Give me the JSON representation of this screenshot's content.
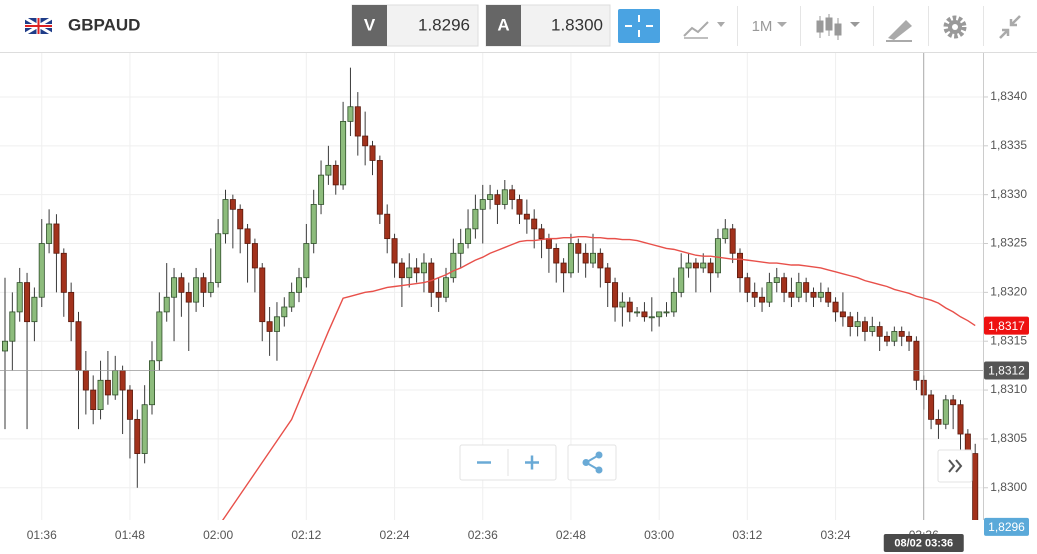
{
  "toolbar": {
    "symbol": "GBPAUD",
    "bid_label": "V",
    "bid": "1.8296",
    "ask_label": "A",
    "ask": "1.8300",
    "timeframe": "1M"
  },
  "chart_data": {
    "type": "candlestick",
    "categories": [
      null,
      null,
      null,
      null,
      null,
      "01:36",
      null,
      null,
      null,
      null,
      null,
      null,
      null,
      null,
      null,
      null,
      null,
      "01:48",
      null,
      null,
      null,
      null,
      null,
      null,
      null,
      null,
      null,
      null,
      null,
      "02:00",
      null,
      null,
      null,
      null,
      null,
      null,
      null,
      null,
      null,
      null,
      null,
      "02:12",
      null,
      null,
      null,
      null,
      null,
      null,
      null,
      null,
      null,
      null,
      null,
      "02:24",
      null,
      null,
      null,
      null,
      null,
      null,
      null,
      null,
      null,
      null,
      null,
      "02:36",
      null,
      null,
      null,
      null,
      null,
      null,
      null,
      null,
      null,
      null,
      null,
      "02:48",
      null,
      null,
      null,
      null,
      null,
      null,
      null,
      null,
      null,
      null,
      null,
      "03:00",
      null,
      null,
      null,
      null,
      null,
      null,
      null,
      null,
      null,
      null,
      null,
      "03:12",
      null,
      null,
      null,
      null,
      null,
      null,
      null,
      null,
      null,
      null,
      null,
      "03:24",
      null,
      null,
      null,
      null,
      null,
      null,
      null,
      null,
      null,
      null,
      null,
      "03:36",
      null,
      null,
      null,
      null,
      null,
      null,
      null
    ],
    "ohlc": [
      [
        1.8314,
        1.83215,
        1.8306,
        1.8315
      ],
      [
        1.8315,
        1.832,
        1.8312,
        1.8318
      ],
      [
        1.8318,
        1.83225,
        1.8317,
        1.8321
      ],
      [
        1.8321,
        1.8322,
        1.8306,
        1.8317
      ],
      [
        1.8317,
        1.83205,
        1.8315,
        1.83195
      ],
      [
        1.83195,
        1.83275,
        1.83185,
        1.8325
      ],
      [
        1.8325,
        1.83285,
        1.8324,
        1.8327
      ],
      [
        1.8327,
        1.8328,
        1.832,
        1.8324
      ],
      [
        1.8324,
        1.83245,
        1.83175,
        1.832
      ],
      [
        1.832,
        1.8321,
        1.8315,
        1.8317
      ],
      [
        1.8317,
        1.8318,
        1.8306,
        1.8312
      ],
      [
        1.8312,
        1.8314,
        1.83075,
        1.831
      ],
      [
        1.831,
        1.83115,
        1.83065,
        1.8308
      ],
      [
        1.8308,
        1.8313,
        1.8307,
        1.8311
      ],
      [
        1.8311,
        1.8314,
        1.83085,
        1.83095
      ],
      [
        1.83095,
        1.83135,
        1.8309,
        1.8312
      ],
      [
        1.8312,
        1.83125,
        1.83055,
        1.831
      ],
      [
        1.831,
        1.83105,
        1.8303,
        1.8307
      ],
      [
        1.8307,
        1.8308,
        1.83,
        1.83035
      ],
      [
        1.83035,
        1.83105,
        1.83025,
        1.83085
      ],
      [
        1.83085,
        1.8315,
        1.83075,
        1.8313
      ],
      [
        1.8313,
        1.832,
        1.8312,
        1.8318
      ],
      [
        1.8318,
        1.8323,
        1.8317,
        1.83195
      ],
      [
        1.83195,
        1.83225,
        1.8315,
        1.83215
      ],
      [
        1.83215,
        1.8322,
        1.83175,
        1.832
      ],
      [
        1.832,
        1.8321,
        1.8314,
        1.8319
      ],
      [
        1.8319,
        1.83225,
        1.8318,
        1.83215
      ],
      [
        1.83215,
        1.8322,
        1.83185,
        1.832
      ],
      [
        1.832,
        1.83245,
        1.83195,
        1.8321
      ],
      [
        1.8321,
        1.83275,
        1.83205,
        1.8326
      ],
      [
        1.8326,
        1.83305,
        1.8325,
        1.83295
      ],
      [
        1.83295,
        1.833,
        1.83245,
        1.83285
      ],
      [
        1.83285,
        1.8329,
        1.8324,
        1.83265
      ],
      [
        1.83265,
        1.8327,
        1.8321,
        1.8325
      ],
      [
        1.8325,
        1.83255,
        1.832,
        1.83225
      ],
      [
        1.83225,
        1.8323,
        1.8315,
        1.8317
      ],
      [
        1.8317,
        1.83185,
        1.83135,
        1.8316
      ],
      [
        1.8316,
        1.8319,
        1.8313,
        1.83175
      ],
      [
        1.83175,
        1.83195,
        1.83165,
        1.83185
      ],
      [
        1.83185,
        1.8321,
        1.8318,
        1.832
      ],
      [
        1.832,
        1.83225,
        1.8319,
        1.83215
      ],
      [
        1.83215,
        1.8327,
        1.83205,
        1.8325
      ],
      [
        1.8325,
        1.83305,
        1.8324,
        1.8329
      ],
      [
        1.8329,
        1.83335,
        1.8328,
        1.8332
      ],
      [
        1.8332,
        1.8335,
        1.8331,
        1.8333
      ],
      [
        1.8333,
        1.83335,
        1.833,
        1.8331
      ],
      [
        1.8331,
        1.83395,
        1.83305,
        1.83375
      ],
      [
        1.83375,
        1.8343,
        1.8336,
        1.8339
      ],
      [
        1.8339,
        1.83405,
        1.8334,
        1.8336
      ],
      [
        1.8336,
        1.83385,
        1.8333,
        1.8335
      ],
      [
        1.8335,
        1.83355,
        1.8332,
        1.83335
      ],
      [
        1.83335,
        1.8334,
        1.8327,
        1.8328
      ],
      [
        1.8328,
        1.8329,
        1.8324,
        1.83255
      ],
      [
        1.83255,
        1.8326,
        1.83215,
        1.8323
      ],
      [
        1.8323,
        1.83235,
        1.83185,
        1.83215
      ],
      [
        1.83215,
        1.8324,
        1.83205,
        1.83225
      ],
      [
        1.83225,
        1.83235,
        1.8321,
        1.8322
      ],
      [
        1.8322,
        1.8324,
        1.832,
        1.8323
      ],
      [
        1.8323,
        1.83235,
        1.83185,
        1.832
      ],
      [
        1.832,
        1.83215,
        1.8318,
        1.83195
      ],
      [
        1.83195,
        1.83225,
        1.8319,
        1.83215
      ],
      [
        1.83215,
        1.83255,
        1.8321,
        1.8324
      ],
      [
        1.8324,
        1.83265,
        1.83225,
        1.8325
      ],
      [
        1.8325,
        1.83285,
        1.83245,
        1.83265
      ],
      [
        1.83265,
        1.833,
        1.83255,
        1.83285
      ],
      [
        1.83285,
        1.8331,
        1.8325,
        1.83295
      ],
      [
        1.83295,
        1.8331,
        1.83285,
        1.833
      ],
      [
        1.833,
        1.83305,
        1.8327,
        1.8329
      ],
      [
        1.8329,
        1.83315,
        1.83285,
        1.83305
      ],
      [
        1.83305,
        1.8331,
        1.83285,
        1.83295
      ],
      [
        1.83295,
        1.833,
        1.8327,
        1.8328
      ],
      [
        1.8328,
        1.83295,
        1.8326,
        1.83275
      ],
      [
        1.83275,
        1.83285,
        1.83245,
        1.83265
      ],
      [
        1.83265,
        1.8327,
        1.83235,
        1.83255
      ],
      [
        1.83255,
        1.8326,
        1.8322,
        1.83245
      ],
      [
        1.83245,
        1.8325,
        1.8321,
        1.8323
      ],
      [
        1.8323,
        1.83235,
        1.832,
        1.8322
      ],
      [
        1.8322,
        1.8326,
        1.83215,
        1.8325
      ],
      [
        1.8325,
        1.83255,
        1.8322,
        1.8324
      ],
      [
        1.8324,
        1.8325,
        1.83215,
        1.8323
      ],
      [
        1.8323,
        1.8326,
        1.83225,
        1.8324
      ],
      [
        1.8324,
        1.83245,
        1.83205,
        1.83225
      ],
      [
        1.83225,
        1.8323,
        1.83185,
        1.8321
      ],
      [
        1.8321,
        1.83215,
        1.8317,
        1.83185
      ],
      [
        1.83185,
        1.832,
        1.83165,
        1.8319
      ],
      [
        1.8319,
        1.83195,
        1.8317,
        1.8318
      ],
      [
        1.8318,
        1.83185,
        1.83175,
        1.8318
      ],
      [
        1.8318,
        1.8319,
        1.8317,
        1.83175
      ],
      [
        1.83175,
        1.83195,
        1.8316,
        1.83175
      ],
      [
        1.83175,
        1.8318,
        1.83165,
        1.8318
      ],
      [
        1.8318,
        1.8319,
        1.83175,
        1.8318
      ],
      [
        1.8318,
        1.83215,
        1.83175,
        1.832
      ],
      [
        1.832,
        1.8324,
        1.83195,
        1.83225
      ],
      [
        1.83225,
        1.8324,
        1.83215,
        1.8323
      ],
      [
        1.8323,
        1.83235,
        1.832,
        1.83225
      ],
      [
        1.83225,
        1.8324,
        1.8322,
        1.8323
      ],
      [
        1.8323,
        1.83235,
        1.832,
        1.8322
      ],
      [
        1.8322,
        1.83265,
        1.83215,
        1.83255
      ],
      [
        1.83255,
        1.83275,
        1.8325,
        1.83265
      ],
      [
        1.83265,
        1.8327,
        1.8323,
        1.8324
      ],
      [
        1.8324,
        1.83245,
        1.832,
        1.83215
      ],
      [
        1.83215,
        1.8322,
        1.8319,
        1.832
      ],
      [
        1.832,
        1.8321,
        1.83185,
        1.83195
      ],
      [
        1.83195,
        1.83205,
        1.8318,
        1.8319
      ],
      [
        1.8319,
        1.8322,
        1.83185,
        1.8321
      ],
      [
        1.8321,
        1.83225,
        1.832,
        1.83215
      ],
      [
        1.83215,
        1.8322,
        1.8319,
        1.832
      ],
      [
        1.832,
        1.83215,
        1.83185,
        1.83195
      ],
      [
        1.83195,
        1.8322,
        1.8319,
        1.8321
      ],
      [
        1.8321,
        1.83215,
        1.8319,
        1.832
      ],
      [
        1.832,
        1.83205,
        1.83185,
        1.83195
      ],
      [
        1.83195,
        1.8321,
        1.8319,
        1.832
      ],
      [
        1.832,
        1.83205,
        1.83185,
        1.8319
      ],
      [
        1.8319,
        1.83195,
        1.8317,
        1.8318
      ],
      [
        1.8318,
        1.832,
        1.83165,
        1.83175
      ],
      [
        1.83175,
        1.8318,
        1.83155,
        1.83165
      ],
      [
        1.83165,
        1.8318,
        1.83155,
        1.8317
      ],
      [
        1.8317,
        1.83175,
        1.8315,
        1.8316
      ],
      [
        1.8316,
        1.83175,
        1.83155,
        1.83165
      ],
      [
        1.83165,
        1.8317,
        1.8314,
        1.83155
      ],
      [
        1.83155,
        1.8316,
        1.83145,
        1.8315
      ],
      [
        1.8315,
        1.83165,
        1.83145,
        1.8316
      ],
      [
        1.8316,
        1.83165,
        1.83145,
        1.83155
      ],
      [
        1.83155,
        1.8316,
        1.8314,
        1.8315
      ],
      [
        1.8315,
        1.83155,
        1.831,
        1.8311
      ],
      [
        1.8311,
        1.83115,
        1.8308,
        1.83095
      ],
      [
        1.83095,
        1.831,
        1.8306,
        1.8307
      ],
      [
        1.8307,
        1.8308,
        1.8305,
        1.83065
      ],
      [
        1.83065,
        1.83095,
        1.8306,
        1.8309
      ],
      [
        1.8309,
        1.83095,
        1.8306,
        1.83085
      ],
      [
        1.83085,
        1.8309,
        1.8303,
        1.83055
      ],
      [
        1.83055,
        1.8306,
        1.8301,
        1.83035
      ],
      [
        1.83035,
        1.83045,
        1.82945,
        1.8296
      ]
    ],
    "up_color": "#8dbc7c",
    "down_color": "#a2321c",
    "lines": [
      {
        "color": "#e8504a",
        "values": [
          null,
          null,
          null,
          null,
          null,
          null,
          null,
          null,
          null,
          null,
          null,
          null,
          null,
          null,
          null,
          null,
          null,
          null,
          null,
          null,
          null,
          null,
          null,
          null,
          null,
          null,
          null,
          null,
          null,
          1.8296,
          1.82971,
          1.82982,
          1.82993,
          1.83004,
          1.83015,
          1.83026,
          1.83037,
          1.83048,
          1.83059,
          1.8307,
          1.83088,
          1.83106,
          1.83124,
          1.83142,
          1.8316,
          1.83177,
          1.83194,
          1.83196,
          1.83198,
          1.832,
          1.83201,
          1.83203,
          1.83205,
          1.83206,
          1.83207,
          1.83208,
          1.83209,
          1.8321,
          1.83212,
          1.83215,
          1.83218,
          1.83222,
          1.83225,
          1.83229,
          1.83233,
          1.83236,
          1.8324,
          1.83243,
          1.83246,
          1.83249,
          1.83252,
          1.83253,
          1.83253,
          1.83254,
          1.83255,
          1.83255,
          1.83256,
          1.83256,
          1.83257,
          1.83257,
          1.83256,
          1.83256,
          1.83255,
          1.83255,
          1.83254,
          1.83254,
          1.83253,
          1.83251,
          1.83249,
          1.83247,
          1.83245,
          1.83244,
          1.83242,
          1.8324,
          1.83238,
          1.83237,
          1.83237,
          1.83236,
          1.83235,
          1.83234,
          1.83234,
          1.83233,
          1.83232,
          1.83231,
          1.8323,
          1.8323,
          1.83229,
          1.83228,
          1.83228,
          1.83227,
          1.83226,
          1.83225,
          1.83223,
          1.83221,
          1.83219,
          1.83217,
          1.83215,
          1.83212,
          1.8321,
          1.83208,
          1.83206,
          1.83203,
          1.83201,
          1.83199,
          1.83196,
          1.83194,
          1.83192,
          1.83189,
          1.83184,
          1.8318,
          1.83175,
          1.83171,
          1.83166
        ]
      }
    ],
    "ylim": [
      1.82967,
      1.83445
    ],
    "yticks": [
      {
        "value": 1.83,
        "label": "1,8300"
      },
      {
        "value": 1.8305,
        "label": "1,8305"
      },
      {
        "value": 1.831,
        "label": "1,8310"
      },
      {
        "value": 1.8315,
        "label": "1,8315"
      },
      {
        "value": 1.832,
        "label": "1,8320"
      },
      {
        "value": 1.8325,
        "label": "1,8325"
      },
      {
        "value": 1.833,
        "label": "1,8330"
      },
      {
        "value": 1.8335,
        "label": "1,8335"
      },
      {
        "value": 1.834,
        "label": "1,8340"
      }
    ],
    "grid": true,
    "crosshair": {
      "price": {
        "value": 1.8312,
        "label": "1,8312"
      },
      "time": "08/02 03:36"
    },
    "last_price": {
      "value": 1.8296,
      "label": "1,8296"
    },
    "line_label": {
      "value": 1.83166,
      "label": "1,8317"
    }
  }
}
